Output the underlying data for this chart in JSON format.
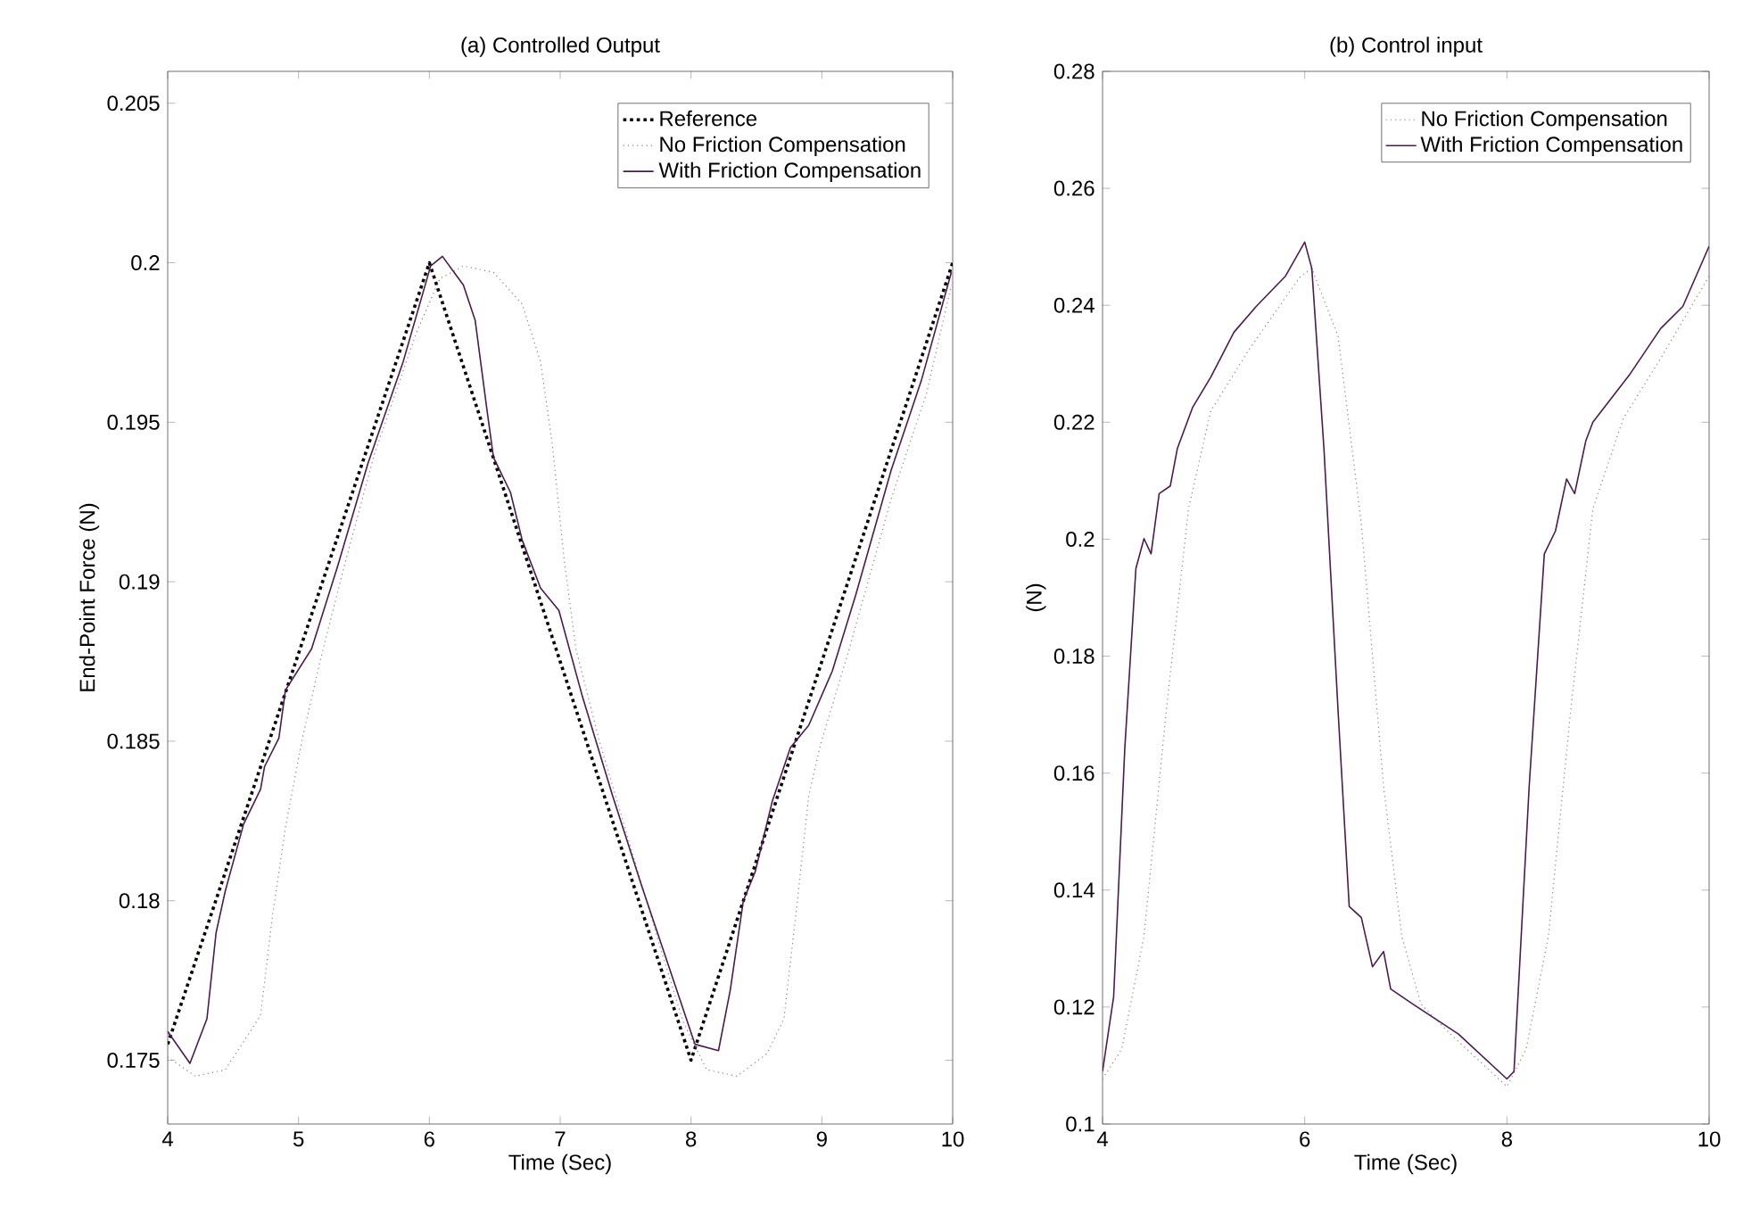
{
  "chart_data": [
    {
      "type": "line",
      "title": "(a) Controlled Output",
      "xlabel": "Time (Sec)",
      "ylabel": "End-Point Force (N)",
      "xlim": [
        4,
        10
      ],
      "ylim": [
        0.173,
        0.206
      ],
      "xticks": [
        4,
        5,
        6,
        7,
        8,
        9,
        10
      ],
      "yticks": [
        0.175,
        0.18,
        0.185,
        0.19,
        0.195,
        0.2,
        0.205
      ],
      "legend": "top right",
      "grid": false,
      "marker": "none",
      "series": [
        {
          "name": "Reference",
          "color": "#000000",
          "line_style": "dotted",
          "x": [
            4,
            6,
            8,
            10
          ],
          "values": [
            0.1755,
            0.2,
            0.175,
            0.2
          ]
        },
        {
          "name": "No Friction Compensation",
          "color": "#808080",
          "line_style": "dotted",
          "x": [
            4,
            4.21,
            4.44,
            4.71,
            4.8,
            4.9,
            5.03,
            5.17,
            5.35,
            5.58,
            5.9,
            6.08,
            6.26,
            6.49,
            6.71,
            6.85,
            6.94,
            7.03,
            7.12,
            7.3,
            7.53,
            7.76,
            7.94,
            8.12,
            8.35,
            8.58,
            8.71,
            8.8,
            8.9,
            8.99,
            9.21,
            9.53,
            9.8,
            9.99
          ],
          "values": [
            0.1751,
            0.1745,
            0.1747,
            0.1764,
            0.1795,
            0.1823,
            0.1851,
            0.1876,
            0.1905,
            0.194,
            0.1978,
            0.1995,
            0.1999,
            0.1997,
            0.1987,
            0.1969,
            0.1943,
            0.1907,
            0.1879,
            0.185,
            0.1818,
            0.1786,
            0.1762,
            0.1747,
            0.1745,
            0.1752,
            0.1763,
            0.1795,
            0.1833,
            0.1849,
            0.1879,
            0.1926,
            0.1959,
            0.1993
          ]
        },
        {
          "name": "With Friction Compensation",
          "color": "#4b1a4f",
          "line_style": "solid",
          "x": [
            4,
            4.17,
            4.3,
            4.37,
            4.44,
            4.58,
            4.71,
            4.74,
            4.85,
            4.9,
            5.1,
            5.3,
            5.53,
            5.8,
            6.01,
            6.1,
            6.26,
            6.35,
            6.44,
            6.49,
            6.62,
            6.71,
            6.85,
            6.99,
            7.17,
            7.4,
            7.62,
            7.85,
            8.03,
            8.21,
            8.3,
            8.4,
            8.49,
            8.62,
            8.76,
            8.9,
            9.08,
            9.26,
            9.53,
            9.76,
            9.99
          ],
          "values": [
            0.1759,
            0.1749,
            0.1763,
            0.179,
            0.1803,
            0.1824,
            0.1835,
            0.1842,
            0.1851,
            0.1866,
            0.1879,
            0.1905,
            0.1937,
            0.1969,
            0.1999,
            0.2002,
            0.1993,
            0.1982,
            0.1954,
            0.1939,
            0.1928,
            0.1913,
            0.1898,
            0.1891,
            0.1864,
            0.1833,
            0.1805,
            0.1777,
            0.1755,
            0.1753,
            0.1772,
            0.18,
            0.1809,
            0.1831,
            0.1848,
            0.1855,
            0.1872,
            0.1896,
            0.1935,
            0.1963,
            0.1997
          ]
        }
      ]
    },
    {
      "type": "line",
      "title": "(b) Control input",
      "xlabel": "Time (Sec)",
      "ylabel": "(N)",
      "xlim": [
        4,
        10
      ],
      "ylim": [
        0.1,
        0.28
      ],
      "xticks": [
        4,
        6,
        8,
        10
      ],
      "yticks": [
        0.1,
        0.12,
        0.14,
        0.16,
        0.18,
        0.2,
        0.22,
        0.24,
        0.26,
        0.28
      ],
      "legend": "top right",
      "grid": false,
      "marker": "none",
      "series": [
        {
          "name": "No Friction Compensation",
          "color": "#808080",
          "line_style": "dotted",
          "x": [
            4,
            4.19,
            4.41,
            4.63,
            4.85,
            5.07,
            5.44,
            5.96,
            6.07,
            6.33,
            6.56,
            6.78,
            6.96,
            7.15,
            7.44,
            8.0,
            8.19,
            8.41,
            8.63,
            8.85,
            9.15,
            9.52,
            10.0
          ],
          "values": [
            0.1077,
            0.1128,
            0.1321,
            0.1706,
            0.2052,
            0.2219,
            0.2322,
            0.245,
            0.2463,
            0.2347,
            0.2026,
            0.1577,
            0.1321,
            0.1205,
            0.1154,
            0.1064,
            0.1128,
            0.1321,
            0.1706,
            0.2052,
            0.2206,
            0.2309,
            0.245
          ]
        },
        {
          "name": "With Friction Compensation",
          "color": "#4b1a4f",
          "line_style": "solid",
          "x": [
            4,
            4.11,
            4.22,
            4.33,
            4.41,
            4.48,
            4.56,
            4.67,
            4.74,
            4.89,
            5.07,
            5.3,
            5.52,
            5.81,
            6.0,
            6.07,
            6.19,
            6.33,
            6.44,
            6.56,
            6.67,
            6.78,
            6.85,
            7.07,
            7.52,
            8.0,
            8.07,
            8.22,
            8.37,
            8.48,
            8.59,
            8.67,
            8.78,
            8.85,
            9.22,
            9.52,
            9.74,
            10.0
          ],
          "values": [
            0.109,
            0.1218,
            0.1642,
            0.195,
            0.2001,
            0.1975,
            0.2078,
            0.2091,
            0.2155,
            0.2225,
            0.2277,
            0.2354,
            0.2398,
            0.245,
            0.2508,
            0.2463,
            0.2155,
            0.1706,
            0.1372,
            0.1353,
            0.1269,
            0.1295,
            0.1231,
            0.1205,
            0.1154,
            0.1077,
            0.109,
            0.1577,
            0.1975,
            0.2014,
            0.2103,
            0.2078,
            0.2168,
            0.22,
            0.2283,
            0.236,
            0.2398,
            0.2501
          ]
        }
      ]
    }
  ]
}
